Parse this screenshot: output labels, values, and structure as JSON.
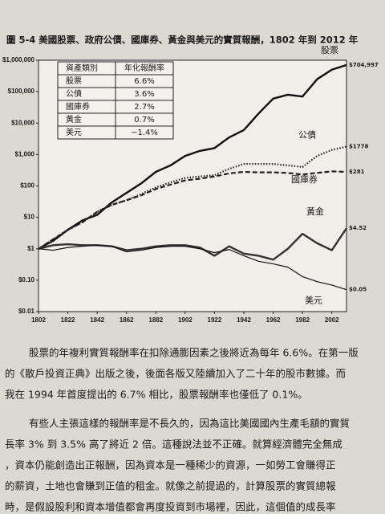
{
  "chart_data": {
    "type": "line",
    "title": "圖 5-4   美國股票、政府公債、國庫券、黃金與美元的實質報酬，1802 年到 2012 年",
    "log_y": true,
    "x": [
      1802,
      1812,
      1822,
      1832,
      1842,
      1852,
      1862,
      1872,
      1882,
      1892,
      1902,
      1912,
      1922,
      1932,
      1942,
      1952,
      1962,
      1972,
      1982,
      1992,
      2002,
      2012
    ],
    "xlim": [
      1802,
      2012
    ],
    "xticks": [
      1802,
      1822,
      1842,
      1862,
      1882,
      1902,
      1922,
      1942,
      1962,
      1982,
      2002
    ],
    "ylim": [
      0.01,
      1000000
    ],
    "yticks": [
      {
        "value": 0.01,
        "label": "$0.01"
      },
      {
        "value": 0.1,
        "label": "$0.10"
      },
      {
        "value": 1,
        "label": "$1"
      },
      {
        "value": 10,
        "label": "$10"
      },
      {
        "value": 100,
        "label": "$100"
      },
      {
        "value": 1000,
        "label": "$1,000"
      },
      {
        "value": 10000,
        "label": "$10,000"
      },
      {
        "value": 100000,
        "label": "$100,000"
      },
      {
        "value": 1000000,
        "label": "$1,000,000"
      }
    ],
    "series": [
      {
        "name": "股票",
        "color": "#111111",
        "style": "solid-thick",
        "end_label": "$704,997",
        "values": [
          1,
          1.8,
          4,
          8,
          12,
          30,
          60,
          120,
          280,
          450,
          900,
          1300,
          1600,
          3500,
          6000,
          20000,
          60000,
          80000,
          70000,
          250000,
          500000,
          704997
        ]
      },
      {
        "name": "公債",
        "color": "#222222",
        "style": "dotted",
        "end_label": "$1778",
        "values": [
          1,
          2,
          4,
          7,
          15,
          25,
          35,
          55,
          90,
          130,
          180,
          200,
          220,
          350,
          500,
          500,
          500,
          450,
          400,
          900,
          1400,
          1778
        ]
      },
      {
        "name": "國庫券",
        "color": "#222222",
        "style": "dashed",
        "end_label": "$281",
        "values": [
          1,
          2,
          4,
          7,
          15,
          25,
          35,
          50,
          80,
          110,
          150,
          170,
          200,
          250,
          280,
          270,
          270,
          260,
          230,
          260,
          290,
          281
        ]
      },
      {
        "name": "黃金",
        "color": "#333333",
        "style": "solid-thick",
        "end_label": "$4.52",
        "values": [
          1,
          1.3,
          1.4,
          1.3,
          1.3,
          1.2,
          0.9,
          1,
          1.2,
          1.3,
          1.3,
          1.1,
          0.6,
          1.2,
          0.7,
          0.6,
          0.45,
          1,
          3,
          1.5,
          0.9,
          4.52
        ]
      },
      {
        "name": "美元",
        "color": "#111111",
        "style": "solid-thin",
        "end_label": "$0.05",
        "values": [
          1,
          0.9,
          1.1,
          1.2,
          1.3,
          1.2,
          0.8,
          0.9,
          1.1,
          1.2,
          1.2,
          1,
          0.75,
          0.95,
          0.6,
          0.4,
          0.33,
          0.26,
          0.13,
          0.09,
          0.07,
          0.05
        ]
      }
    ],
    "table": {
      "header": [
        "資產類別",
        "年化報酬率"
      ],
      "rows": [
        [
          "股票",
          "6.6%"
        ],
        [
          "公債",
          "3.6%"
        ],
        [
          "國庫券",
          "2.7%"
        ],
        [
          "黃金",
          "0.7%"
        ],
        [
          "美元",
          "−1.4%"
        ]
      ]
    }
  },
  "paragraphs": [
    "股票的年複利實質報酬率在扣除通膨因素之後將近為每年 6.6%。在第一版",
    "的《散戶投資正典》出版之後，後面各版又陸續加入了二十年的股市數據。而",
    "我在 1994 年首度提出的 6.7% 相比，股票報酬率也僅低了 0.1%。",
    "有些人主張這樣的報酬率是不長久的，因為這比美國國內生產毛額的實質",
    "長率 3% 到 3.5% 高了將近 2 倍。這種說法並不正確。就算經濟體完全無成",
    "，資本仍能創造出正報酬，因為資本是一種稀少的資源，一如勞工會賺得正",
    "的薪資，土地也會賺到正值的租金。就像之前提過的，計算股票的實質總報",
    "時，是假設股利和資本增值都會再度投資到市場裡，因此，這個值的成長率"
  ]
}
